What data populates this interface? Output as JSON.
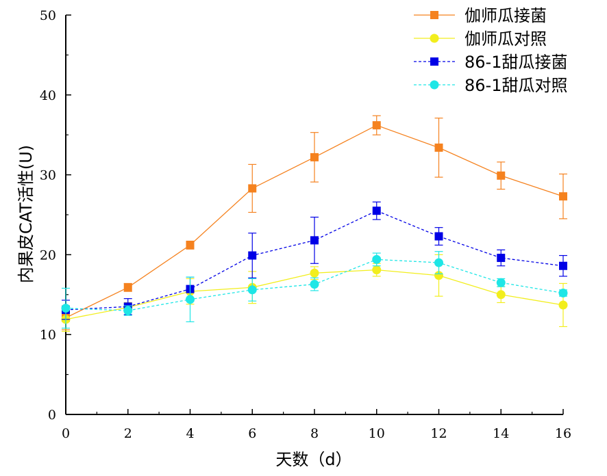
{
  "chart_data": {
    "type": "line",
    "xlabel": "天数（d）",
    "ylabel": "内果皮CAT活性(U)",
    "xlim": [
      0,
      16
    ],
    "ylim": [
      0,
      50
    ],
    "x_ticks": [
      "0",
      "2",
      "4",
      "6",
      "8",
      "10",
      "12",
      "14",
      "16"
    ],
    "y_ticks": [
      "0",
      "10",
      "20",
      "30",
      "40",
      "50"
    ],
    "grid": false,
    "legend_position": "top-right",
    "x": [
      0,
      2,
      4,
      6,
      8,
      10,
      12,
      14,
      16
    ],
    "series": [
      {
        "name": "伽师瓜接菌",
        "color": "#F5821F",
        "marker": "square",
        "line_style": "solid",
        "values": [
          12.1,
          15.9,
          21.2,
          28.3,
          32.2,
          36.2,
          33.4,
          29.9,
          27.3
        ],
        "error": [
          1.5,
          0.5,
          0.5,
          3.0,
          3.1,
          1.2,
          3.7,
          1.7,
          2.8
        ]
      },
      {
        "name": "伽师瓜对照",
        "color": "#F2EE1D",
        "marker": "circle",
        "line_style": "solid",
        "values": [
          11.9,
          13.4,
          15.4,
          15.9,
          17.7,
          18.1,
          17.4,
          15.0,
          13.7
        ],
        "error": [
          1.5,
          0.6,
          1.6,
          2.0,
          0.8,
          0.8,
          2.6,
          1.0,
          2.7
        ]
      },
      {
        "name": "86-1甜瓜接菌",
        "color": "#0000E6",
        "marker": "square",
        "line_style": "dashed",
        "values": [
          13.1,
          13.5,
          15.7,
          19.9,
          21.8,
          25.5,
          22.3,
          19.6,
          18.6
        ],
        "error": [
          1.2,
          1.0,
          1.5,
          2.8,
          2.9,
          1.1,
          1.1,
          1.0,
          1.3
        ]
      },
      {
        "name": "86-1甜瓜对照",
        "color": "#1EE6E6",
        "marker": "circle",
        "line_style": "dashed",
        "values": [
          13.3,
          13.0,
          14.4,
          15.6,
          16.3,
          19.4,
          19.0,
          16.5,
          15.2
        ],
        "error": [
          2.5,
          0.6,
          2.8,
          1.4,
          0.8,
          0.8,
          1.4,
          0.5,
          0.4
        ]
      }
    ]
  }
}
